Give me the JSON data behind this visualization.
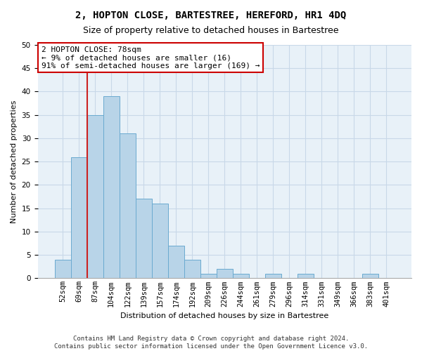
{
  "title": "2, HOPTON CLOSE, BARTESTREE, HEREFORD, HR1 4DQ",
  "subtitle": "Size of property relative to detached houses in Bartestree",
  "xlabel": "Distribution of detached houses by size in Bartestree",
  "ylabel": "Number of detached properties",
  "bins": [
    "52sqm",
    "69sqm",
    "87sqm",
    "104sqm",
    "122sqm",
    "139sqm",
    "157sqm",
    "174sqm",
    "192sqm",
    "209sqm",
    "226sqm",
    "244sqm",
    "261sqm",
    "279sqm",
    "296sqm",
    "314sqm",
    "331sqm",
    "349sqm",
    "366sqm",
    "383sqm",
    "401sqm"
  ],
  "values": [
    4,
    26,
    35,
    39,
    31,
    17,
    16,
    7,
    4,
    1,
    2,
    1,
    0,
    1,
    0,
    1,
    0,
    0,
    0,
    1,
    0
  ],
  "bar_color": "#b8d4e8",
  "bar_edge_color": "#6aaad0",
  "property_line_bin_index": 1.5,
  "annotation_text": "2 HOPTON CLOSE: 78sqm\n← 9% of detached houses are smaller (16)\n91% of semi-detached houses are larger (169) →",
  "annotation_box_color": "#ffffff",
  "annotation_box_edge": "#cc0000",
  "ref_line_color": "#cc2222",
  "ylim": [
    0,
    50
  ],
  "yticks": [
    0,
    5,
    10,
    15,
    20,
    25,
    30,
    35,
    40,
    45,
    50
  ],
  "grid_color": "#c8d8e8",
  "footer_line1": "Contains HM Land Registry data © Crown copyright and database right 2024.",
  "footer_line2": "Contains public sector information licensed under the Open Government Licence v3.0.",
  "title_fontsize": 10,
  "subtitle_fontsize": 9,
  "axis_label_fontsize": 8,
  "tick_fontsize": 7.5,
  "annotation_fontsize": 8,
  "footer_fontsize": 6.5
}
